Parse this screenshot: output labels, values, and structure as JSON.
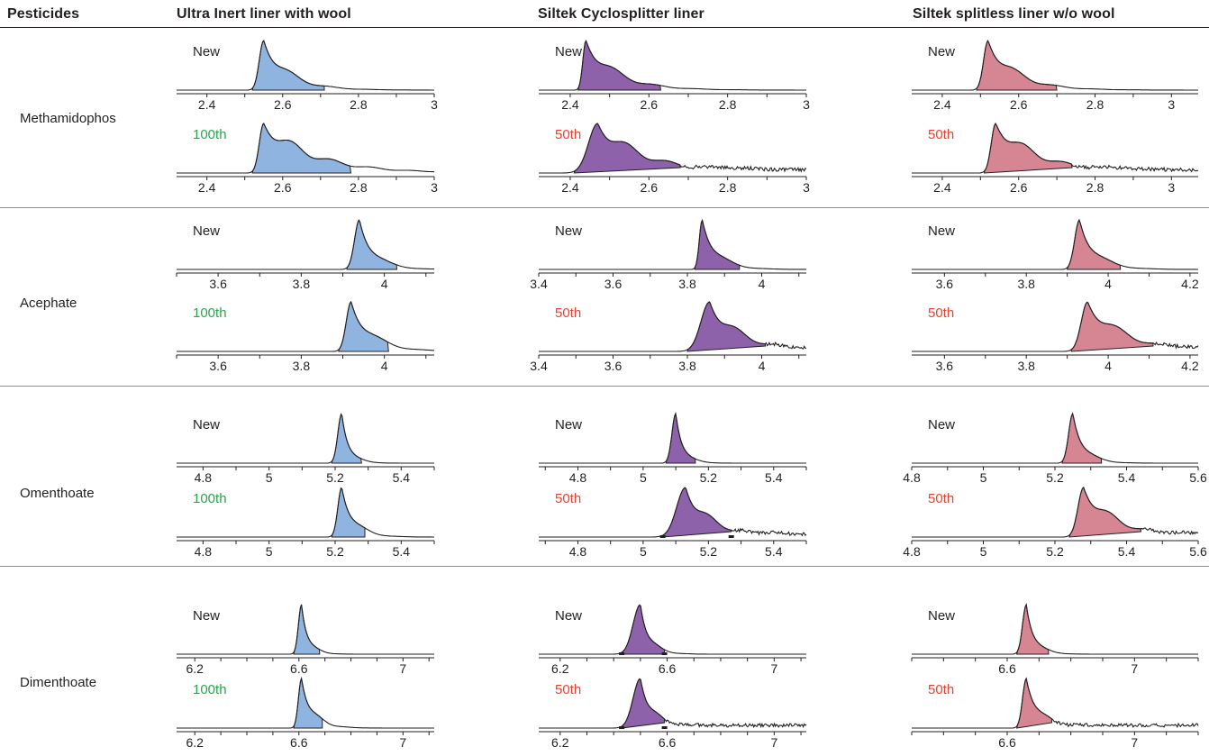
{
  "headers": {
    "pesticides": "Pesticides",
    "uiw": "Ultra Inert liner with wool",
    "cyclo": "Siltek Cyclosplitter liner",
    "spl": "Siltek splitless liner w/o wool"
  },
  "rows": [
    "Methamidophos",
    "Acephate",
    "Omenthoate",
    "Dimenthoate"
  ],
  "colors": {
    "blue": "#8fb4e0",
    "purple": "#8e62aa",
    "pink": "#d68593",
    "green": "#25a84a",
    "red": "#e8422f",
    "line": "#231f20"
  },
  "chart_data": [
    {
      "type": "area",
      "row": "Methamidophos",
      "column": "Ultra Inert liner with wool",
      "label": "New",
      "x_ticks": [
        "2.4",
        "2.6",
        "2.8",
        "3"
      ],
      "peak_x": 2.55,
      "integrated_range": [
        2.52,
        2.71
      ]
    },
    {
      "type": "area",
      "row": "Methamidophos",
      "column": "Ultra Inert liner with wool",
      "label": "100th",
      "x_ticks": [
        "2.4",
        "2.6",
        "2.8",
        "3"
      ],
      "peak_x": 2.55,
      "integrated_range": [
        2.52,
        2.78
      ]
    },
    {
      "type": "area",
      "row": "Methamidophos",
      "column": "Siltek Cyclosplitter liner",
      "label": "New",
      "x_ticks": [
        "2.4",
        "2.6",
        "2.8",
        "3"
      ],
      "peak_x": 2.44,
      "integrated_range": [
        2.42,
        2.63
      ]
    },
    {
      "type": "area",
      "row": "Methamidophos",
      "column": "Siltek Cyclosplitter liner",
      "label": "50th",
      "x_ticks": [
        "2.4",
        "2.6",
        "2.8",
        "3"
      ],
      "peak_x": 2.47,
      "integrated_range": [
        2.41,
        2.68
      ]
    },
    {
      "type": "area",
      "row": "Methamidophos",
      "column": "Siltek splitless liner w/o wool",
      "label": "New",
      "x_ticks": [
        "2.4",
        "2.6",
        "2.8",
        "3"
      ],
      "peak_x": 2.52,
      "integrated_range": [
        2.49,
        2.7
      ]
    },
    {
      "type": "area",
      "row": "Methamidophos",
      "column": "Siltek splitless liner w/o wool",
      "label": "50th",
      "x_ticks": [
        "2.4",
        "2.6",
        "2.8",
        "3"
      ],
      "peak_x": 2.54,
      "integrated_range": [
        2.51,
        2.74
      ]
    },
    {
      "type": "area",
      "row": "Acephate",
      "column": "Ultra Inert liner with wool",
      "label": "New",
      "x_ticks": [
        "3.6",
        "3.8",
        "4"
      ],
      "peak_x": 3.94,
      "integrated_range": [
        3.91,
        4.03
      ]
    },
    {
      "type": "area",
      "row": "Acephate",
      "column": "Ultra Inert liner with wool",
      "label": "100th",
      "x_ticks": [
        "3.6",
        "3.8",
        "4"
      ],
      "peak_x": 3.92,
      "integrated_range": [
        3.89,
        4.01
      ]
    },
    {
      "type": "area",
      "row": "Acephate",
      "column": "Siltek Cyclosplitter liner",
      "label": "New",
      "x_ticks": [
        "3.4",
        "3.6",
        "3.8",
        "4"
      ],
      "peak_x": 3.84,
      "integrated_range": [
        3.82,
        3.94
      ]
    },
    {
      "type": "area",
      "row": "Acephate",
      "column": "Siltek Cyclosplitter liner",
      "label": "50th",
      "x_ticks": [
        "3.4",
        "3.6",
        "3.8",
        "4"
      ],
      "peak_x": 3.86,
      "integrated_range": [
        3.8,
        4.01
      ]
    },
    {
      "type": "area",
      "row": "Acephate",
      "column": "Siltek splitless liner w/o wool",
      "label": "New",
      "x_ticks": [
        "3.6",
        "3.8",
        "4",
        "4.2"
      ],
      "peak_x": 3.93,
      "integrated_range": [
        3.9,
        4.03
      ]
    },
    {
      "type": "area",
      "row": "Acephate",
      "column": "Siltek splitless liner w/o wool",
      "label": "50th",
      "x_ticks": [
        "3.6",
        "3.8",
        "4",
        "4.2"
      ],
      "peak_x": 3.95,
      "integrated_range": [
        3.91,
        4.11
      ]
    },
    {
      "type": "area",
      "row": "Omenthoate",
      "column": "Ultra Inert liner with wool",
      "label": "New",
      "x_ticks": [
        "4.8",
        "5",
        "5.2",
        "5.4"
      ],
      "peak_x": 5.22,
      "integrated_range": [
        5.19,
        5.28
      ]
    },
    {
      "type": "area",
      "row": "Omenthoate",
      "column": "Ultra Inert liner with wool",
      "label": "100th",
      "x_ticks": [
        "4.8",
        "5",
        "5.2",
        "5.4"
      ],
      "peak_x": 5.22,
      "integrated_range": [
        5.19,
        5.29
      ]
    },
    {
      "type": "area",
      "row": "Omenthoate",
      "column": "Siltek Cyclosplitter liner",
      "label": "New",
      "x_ticks": [
        "4.8",
        "5",
        "5.2",
        "5.4"
      ],
      "peak_x": 5.1,
      "integrated_range": [
        5.07,
        5.16
      ]
    },
    {
      "type": "area",
      "row": "Omenthoate",
      "column": "Siltek Cyclosplitter liner",
      "label": "50th",
      "x_ticks": [
        "4.8",
        "5",
        "5.2",
        "5.4"
      ],
      "peak_x": 5.13,
      "integrated_range": [
        5.06,
        5.27
      ]
    },
    {
      "type": "area",
      "row": "Omenthoate",
      "column": "Siltek splitless liner w/o wool",
      "label": "New",
      "x_ticks": [
        "4.8",
        "5",
        "5.2",
        "5.4",
        "5.6"
      ],
      "peak_x": 5.25,
      "integrated_range": [
        5.22,
        5.33
      ]
    },
    {
      "type": "area",
      "row": "Omenthoate",
      "column": "Siltek splitless liner w/o wool",
      "label": "50th",
      "x_ticks": [
        "4.8",
        "5",
        "5.2",
        "5.4",
        "5.6"
      ],
      "peak_x": 5.28,
      "integrated_range": [
        5.24,
        5.44
      ]
    },
    {
      "type": "area",
      "row": "Dimenthoate",
      "column": "Ultra Inert liner with wool",
      "label": "New",
      "x_ticks": [
        "6.2",
        "6.6",
        "7"
      ],
      "peak_x": 6.61,
      "integrated_range": [
        6.58,
        6.68
      ]
    },
    {
      "type": "area",
      "row": "Dimenthoate",
      "column": "Ultra Inert liner with wool",
      "label": "100th",
      "x_ticks": [
        "6.2",
        "6.6",
        "7"
      ],
      "peak_x": 6.61,
      "integrated_range": [
        6.58,
        6.69
      ]
    },
    {
      "type": "area",
      "row": "Dimenthoate",
      "column": "Siltek Cyclosplitter liner",
      "label": "New",
      "x_ticks": [
        "6.2",
        "6.6",
        "7"
      ],
      "peak_x": 6.5,
      "integrated_range": [
        6.43,
        6.59
      ]
    },
    {
      "type": "area",
      "row": "Dimenthoate",
      "column": "Siltek Cyclosplitter liner",
      "label": "50th",
      "x_ticks": [
        "6.2",
        "6.6",
        "7"
      ],
      "peak_x": 6.5,
      "integrated_range": [
        6.43,
        6.59
      ]
    },
    {
      "type": "area",
      "row": "Dimenthoate",
      "column": "Siltek splitless liner w/o wool",
      "label": "New",
      "x_ticks": [
        "6.6",
        "7"
      ],
      "peak_x": 6.66,
      "integrated_range": [
        6.63,
        6.73
      ]
    },
    {
      "type": "area",
      "row": "Dimenthoate",
      "column": "Siltek splitless liner w/o wool",
      "label": "50th",
      "x_ticks": [
        "6.6",
        "7"
      ],
      "peak_x": 6.66,
      "integrated_range": [
        6.63,
        6.74
      ]
    }
  ]
}
